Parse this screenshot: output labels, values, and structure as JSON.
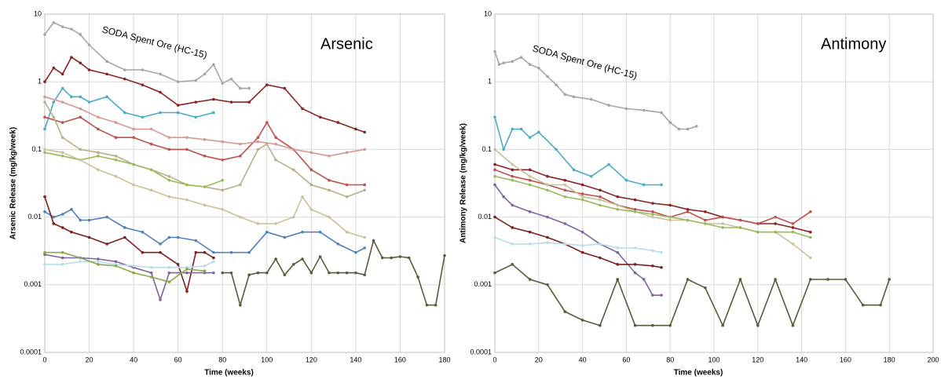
{
  "chart_data": [
    {
      "type": "line",
      "xlabel": "Time (weeks)",
      "ylabel": "Arsenic Release (mg/kg/week)",
      "annotations": [
        "SODA Spent Ore (HC-15)",
        "Arsenic"
      ],
      "log_y": true,
      "grid": true,
      "xlim": [
        0,
        180
      ],
      "ylim": [
        0.0001,
        10
      ],
      "xticks": [
        0,
        20,
        40,
        60,
        80,
        100,
        120,
        140,
        160,
        180
      ],
      "yticks": [
        0.0001,
        0.001,
        0.01,
        0.1,
        1,
        10
      ],
      "series": [
        {
          "color": "#a6a6a6",
          "x": [
            0,
            4,
            8,
            12,
            16,
            20,
            28,
            36,
            44,
            52,
            60,
            68,
            72,
            76,
            80,
            84,
            88,
            92
          ],
          "values": [
            5,
            7.5,
            6.5,
            6,
            5,
            3.5,
            2,
            1.5,
            1.5,
            1.3,
            1,
            1.05,
            1.3,
            1.8,
            0.95,
            1.1,
            0.8,
            0.8
          ]
        },
        {
          "color": "#8b2323",
          "x": [
            0,
            4,
            8,
            12,
            16,
            20,
            28,
            36,
            44,
            52,
            60,
            68,
            76,
            84,
            92,
            100,
            108,
            116,
            124,
            132,
            140,
            144
          ],
          "values": [
            1,
            1.6,
            1.3,
            2.3,
            1.9,
            1.5,
            1.3,
            1.1,
            0.9,
            0.7,
            0.45,
            0.5,
            0.55,
            0.5,
            0.5,
            0.9,
            0.8,
            0.4,
            0.3,
            0.25,
            0.2,
            0.18
          ]
        },
        {
          "color": "#4bacc6",
          "x": [
            0,
            4,
            8,
            12,
            16,
            20,
            28,
            36,
            44,
            52,
            60,
            68,
            76
          ],
          "values": [
            0.2,
            0.5,
            0.8,
            0.6,
            0.6,
            0.5,
            0.6,
            0.35,
            0.3,
            0.35,
            0.35,
            0.3,
            0.35
          ]
        },
        {
          "color": "#c0504d",
          "x": [
            0,
            8,
            16,
            24,
            32,
            40,
            48,
            56,
            64,
            72,
            80,
            88,
            96,
            100,
            104,
            112,
            120,
            128,
            136,
            144
          ],
          "values": [
            0.3,
            0.25,
            0.3,
            0.2,
            0.15,
            0.15,
            0.12,
            0.1,
            0.1,
            0.08,
            0.07,
            0.08,
            0.15,
            0.25,
            0.15,
            0.1,
            0.05,
            0.035,
            0.03,
            0.03
          ]
        },
        {
          "color": "#b7b08a",
          "x": [
            0,
            4,
            8,
            16,
            24,
            32,
            40,
            48,
            56,
            64,
            72,
            80,
            88,
            96,
            100,
            104,
            112,
            120,
            128,
            136,
            144
          ],
          "values": [
            0.5,
            0.3,
            0.15,
            0.1,
            0.09,
            0.08,
            0.06,
            0.05,
            0.04,
            0.03,
            0.028,
            0.025,
            0.03,
            0.1,
            0.12,
            0.07,
            0.05,
            0.03,
            0.025,
            0.02,
            0.025
          ]
        },
        {
          "color": "#9bbb59",
          "x": [
            0,
            8,
            16,
            24,
            32,
            40,
            48,
            56,
            64,
            72,
            80
          ],
          "values": [
            0.09,
            0.08,
            0.07,
            0.08,
            0.07,
            0.06,
            0.05,
            0.035,
            0.03,
            0.028,
            0.035
          ]
        },
        {
          "color": "#d99694",
          "x": [
            0,
            8,
            16,
            24,
            32,
            40,
            48,
            56,
            64,
            72,
            80,
            88,
            96,
            104,
            112,
            120,
            128,
            136,
            144
          ],
          "values": [
            0.6,
            0.5,
            0.4,
            0.3,
            0.25,
            0.2,
            0.2,
            0.15,
            0.15,
            0.14,
            0.13,
            0.12,
            0.13,
            0.12,
            0.1,
            0.09,
            0.08,
            0.09,
            0.1
          ]
        },
        {
          "color": "#c9c29b",
          "x": [
            0,
            8,
            16,
            24,
            32,
            40,
            48,
            56,
            64,
            72,
            80,
            88,
            96,
            104,
            112,
            116,
            120,
            128,
            136,
            144
          ],
          "values": [
            0.1,
            0.09,
            0.07,
            0.05,
            0.04,
            0.03,
            0.025,
            0.02,
            0.018,
            0.015,
            0.013,
            0.01,
            0.008,
            0.008,
            0.01,
            0.02,
            0.013,
            0.01,
            0.006,
            0.005
          ]
        },
        {
          "color": "#4f81bd",
          "x": [
            0,
            4,
            8,
            12,
            16,
            20,
            28,
            36,
            44,
            52,
            56,
            60,
            68,
            76,
            84,
            92,
            100,
            108,
            116,
            124,
            132,
            140,
            144
          ],
          "values": [
            0.012,
            0.01,
            0.011,
            0.013,
            0.009,
            0.009,
            0.01,
            0.007,
            0.006,
            0.004,
            0.005,
            0.005,
            0.0045,
            0.003,
            0.003,
            0.003,
            0.006,
            0.005,
            0.006,
            0.006,
            0.004,
            0.003,
            0.0035
          ]
        },
        {
          "color": "#7f1f1f",
          "x": [
            0,
            4,
            8,
            12,
            20,
            28,
            36,
            44,
            52,
            60,
            64,
            68,
            72,
            76
          ],
          "values": [
            0.02,
            0.008,
            0.007,
            0.006,
            0.005,
            0.004,
            0.005,
            0.003,
            0.003,
            0.002,
            0.0008,
            0.003,
            0.003,
            0.0025
          ]
        },
        {
          "color": "#5a5a3c",
          "x": [
            80,
            84,
            88,
            92,
            96,
            100,
            104,
            108,
            112,
            116,
            120,
            124,
            128,
            132,
            136,
            140,
            144,
            148,
            152,
            156,
            160,
            164,
            168,
            172,
            176,
            180
          ],
          "values": [
            0.0015,
            0.0015,
            0.0005,
            0.0014,
            0.0015,
            0.0015,
            0.0024,
            0.0014,
            0.002,
            0.0024,
            0.0015,
            0.0026,
            0.0015,
            0.0015,
            0.0015,
            0.0015,
            0.0014,
            0.0045,
            0.0025,
            0.0025,
            0.0026,
            0.0025,
            0.0013,
            0.0005,
            0.0005,
            0.0027
          ]
        },
        {
          "color": "#8064a2",
          "x": [
            0,
            8,
            16,
            24,
            32,
            40,
            48,
            52,
            56,
            64,
            72,
            76
          ],
          "values": [
            0.0028,
            0.0025,
            0.0025,
            0.0024,
            0.0022,
            0.0018,
            0.0015,
            0.0006,
            0.0015,
            0.0015,
            0.0015,
            0.0015
          ]
        },
        {
          "color": "#b7dee8",
          "x": [
            0,
            8,
            16,
            24,
            32,
            40,
            48,
            56,
            64,
            72,
            76
          ],
          "values": [
            0.002,
            0.002,
            0.0022,
            0.0022,
            0.002,
            0.0019,
            0.0018,
            0.0018,
            0.0018,
            0.0019,
            0.0022
          ]
        },
        {
          "color": "#8aa84a",
          "x": [
            0,
            8,
            16,
            24,
            32,
            40,
            48,
            56,
            64,
            72
          ],
          "values": [
            0.003,
            0.003,
            0.0025,
            0.002,
            0.0019,
            0.0015,
            0.0013,
            0.0011,
            0.0017,
            0.0016
          ]
        }
      ]
    },
    {
      "type": "line",
      "xlabel": "Time (weeks)",
      "ylabel": "Antimony Release (mg/kg/week)",
      "annotations": [
        "SODA Spent Ore (HC-15)",
        "Antimony"
      ],
      "log_y": true,
      "grid": true,
      "xlim": [
        0,
        200
      ],
      "ylim": [
        0.0001,
        10
      ],
      "xticks": [
        0,
        20,
        40,
        60,
        80,
        100,
        120,
        140,
        160,
        180,
        200
      ],
      "yticks": [
        0.0001,
        0.001,
        0.01,
        0.1,
        1,
        10
      ],
      "series": [
        {
          "color": "#a6a6a6",
          "x": [
            0,
            2,
            4,
            8,
            12,
            16,
            20,
            24,
            28,
            32,
            36,
            44,
            52,
            60,
            68,
            76,
            80,
            84,
            88,
            92
          ],
          "values": [
            2.8,
            1.8,
            1.9,
            2,
            2.3,
            1.8,
            1.6,
            1.2,
            0.9,
            0.65,
            0.6,
            0.55,
            0.45,
            0.4,
            0.38,
            0.35,
            0.25,
            0.2,
            0.2,
            0.22
          ]
        },
        {
          "color": "#4bacc6",
          "x": [
            0,
            4,
            8,
            12,
            16,
            20,
            28,
            36,
            44,
            52,
            60,
            68,
            76
          ],
          "values": [
            0.3,
            0.1,
            0.2,
            0.2,
            0.15,
            0.18,
            0.1,
            0.05,
            0.04,
            0.06,
            0.035,
            0.03,
            0.03
          ]
        },
        {
          "color": "#8b2323",
          "x": [
            0,
            8,
            16,
            24,
            32,
            40,
            48,
            56,
            64,
            72,
            80,
            88,
            96,
            104,
            112,
            120,
            128,
            136,
            144
          ],
          "values": [
            0.06,
            0.05,
            0.05,
            0.04,
            0.035,
            0.03,
            0.025,
            0.02,
            0.018,
            0.016,
            0.015,
            0.013,
            0.012,
            0.01,
            0.009,
            0.008,
            0.008,
            0.007,
            0.006
          ]
        },
        {
          "color": "#c0504d",
          "x": [
            0,
            8,
            16,
            24,
            32,
            40,
            48,
            56,
            64,
            72,
            80,
            88,
            96,
            104,
            112,
            120,
            128,
            136,
            144
          ],
          "values": [
            0.05,
            0.04,
            0.035,
            0.03,
            0.025,
            0.022,
            0.02,
            0.015,
            0.013,
            0.012,
            0.01,
            0.012,
            0.009,
            0.01,
            0.009,
            0.008,
            0.01,
            0.008,
            0.012
          ]
        },
        {
          "color": "#c9c29b",
          "x": [
            0,
            8,
            16,
            24,
            32,
            40,
            48,
            56,
            64,
            72,
            80,
            88,
            96,
            104,
            112,
            120,
            128,
            136,
            144
          ],
          "values": [
            0.1,
            0.06,
            0.04,
            0.03,
            0.03,
            0.02,
            0.018,
            0.015,
            0.012,
            0.01,
            0.009,
            0.009,
            0.008,
            0.008,
            0.007,
            0.006,
            0.006,
            0.004,
            0.0025
          ]
        },
        {
          "color": "#9bbb59",
          "x": [
            0,
            8,
            16,
            24,
            32,
            40,
            48,
            56,
            64,
            72,
            80,
            88,
            96,
            104,
            112,
            120,
            128,
            136,
            144
          ],
          "values": [
            0.04,
            0.035,
            0.03,
            0.025,
            0.02,
            0.018,
            0.015,
            0.013,
            0.012,
            0.011,
            0.01,
            0.009,
            0.008,
            0.007,
            0.007,
            0.006,
            0.006,
            0.006,
            0.005
          ]
        },
        {
          "color": "#8064a2",
          "x": [
            0,
            4,
            8,
            16,
            24,
            32,
            40,
            48,
            56,
            64,
            68,
            72,
            76
          ],
          "values": [
            0.03,
            0.02,
            0.015,
            0.012,
            0.01,
            0.008,
            0.006,
            0.004,
            0.003,
            0.0015,
            0.0012,
            0.0007,
            0.0007
          ]
        },
        {
          "color": "#7f1f1f",
          "x": [
            0,
            8,
            16,
            24,
            32,
            40,
            48,
            56,
            64,
            72,
            76
          ],
          "values": [
            0.01,
            0.007,
            0.006,
            0.005,
            0.004,
            0.003,
            0.0025,
            0.002,
            0.002,
            0.0019,
            0.0018
          ]
        },
        {
          "color": "#b7dee8",
          "x": [
            0,
            8,
            16,
            24,
            32,
            40,
            48,
            56,
            64,
            72,
            76
          ],
          "values": [
            0.005,
            0.004,
            0.004,
            0.0042,
            0.004,
            0.0038,
            0.004,
            0.0035,
            0.0035,
            0.0032,
            0.003
          ]
        },
        {
          "color": "#5a5a3c",
          "x": [
            0,
            8,
            16,
            24,
            32,
            40,
            48,
            56,
            64,
            72,
            80,
            88,
            96,
            104,
            112,
            120,
            128,
            136,
            144,
            152,
            160,
            168,
            176,
            180
          ],
          "values": [
            0.0015,
            0.002,
            0.0012,
            0.001,
            0.0004,
            0.0003,
            0.00025,
            0.0012,
            0.00025,
            0.00025,
            0.00025,
            0.0012,
            0.0009,
            0.00025,
            0.0012,
            0.00025,
            0.0012,
            0.00025,
            0.0012,
            0.0012,
            0.0012,
            0.0005,
            0.0005,
            0.0012
          ]
        }
      ]
    }
  ]
}
